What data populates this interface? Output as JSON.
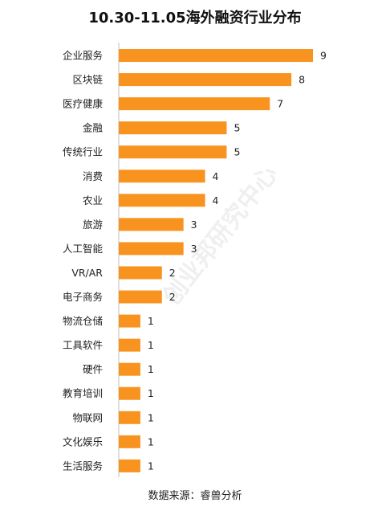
{
  "chart_data": {
    "type": "bar",
    "orientation": "horizontal",
    "title": "10.30-11.05海外融资行业分布",
    "categories": [
      "企业服务",
      "区块链",
      "医疗健康",
      "金融",
      "传统行业",
      "消费",
      "农业",
      "旅游",
      "人工智能",
      "VR/AR",
      "电子商务",
      "物流仓储",
      "工具软件",
      "硬件",
      "教育培训",
      "物联网",
      "文化娱乐",
      "生活服务"
    ],
    "values": [
      9,
      8,
      7,
      5,
      5,
      4,
      4,
      3,
      3,
      2,
      2,
      1,
      1,
      1,
      1,
      1,
      1,
      1
    ],
    "bar_color": "#F7931E",
    "xlim": [
      0,
      9
    ],
    "grid": false,
    "data_labels": true
  },
  "source": "数据来源：睿兽分析",
  "watermark": "创业邦研究中心"
}
